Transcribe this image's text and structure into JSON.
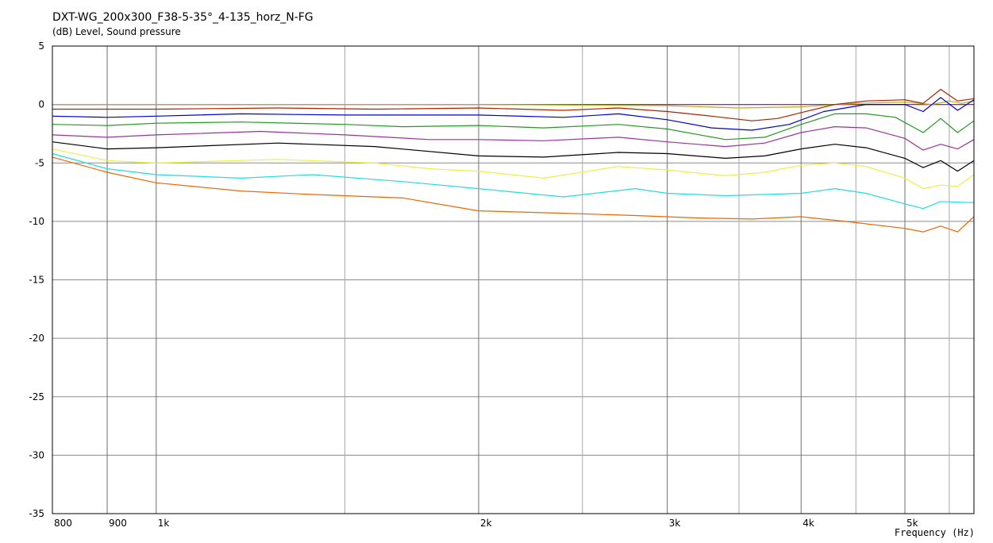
{
  "chart_data": {
    "type": "line",
    "title": "DXT-WG_200x300_F38-5-35°_4-135_horz_N-FG",
    "ylabel": "(dB)  Level, Sound pressure",
    "xlabel": "Frequency  (Hz)",
    "x_scale": "log",
    "xlim": [
      800,
      5800
    ],
    "ylim": [
      -35,
      5
    ],
    "grid": true,
    "x_tick_values": [
      800,
      900,
      1000,
      2000,
      3000,
      4000,
      5000
    ],
    "x_tick_labels": [
      "800",
      "900",
      "1k",
      "2k",
      "3k",
      "4k",
      "5k"
    ],
    "x_minor_gridlines": [
      1500,
      2500,
      3500,
      4500,
      5500
    ],
    "y_ticks": [
      5,
      0,
      -5,
      -10,
      -15,
      -20,
      -25,
      -30,
      -35
    ],
    "y_tick_labels": [
      "5",
      "0",
      "-5",
      "-10",
      "-15",
      "-20",
      "-25",
      "-30",
      "-35"
    ],
    "series": [
      {
        "color": "#cc00cc",
        "points": [
          [
            800,
            0.0
          ],
          [
            1000,
            0.0
          ],
          [
            2000,
            0.0
          ],
          [
            3000,
            0.0
          ],
          [
            4000,
            0.0
          ],
          [
            5000,
            0.0
          ],
          [
            5800,
            0.0
          ]
        ]
      },
      {
        "color": "#b5b500",
        "points": [
          [
            800,
            0.0
          ],
          [
            1000,
            0.0
          ],
          [
            2000,
            0.0
          ],
          [
            3000,
            -0.1
          ],
          [
            3500,
            -0.3
          ],
          [
            4000,
            -0.2
          ],
          [
            4500,
            0.1
          ],
          [
            5000,
            0.2
          ],
          [
            5300,
            0.0
          ],
          [
            5500,
            0.3
          ],
          [
            5650,
            0.1
          ],
          [
            5800,
            0.3
          ]
        ]
      },
      {
        "color": "#aa2200",
        "points": [
          [
            800,
            -0.4
          ],
          [
            900,
            -0.4
          ],
          [
            1000,
            -0.4
          ],
          [
            1300,
            -0.3
          ],
          [
            1600,
            -0.4
          ],
          [
            2000,
            -0.3
          ],
          [
            2400,
            -0.5
          ],
          [
            2700,
            -0.3
          ],
          [
            3000,
            -0.6
          ],
          [
            3300,
            -1.0
          ],
          [
            3600,
            -1.4
          ],
          [
            3800,
            -1.2
          ],
          [
            4000,
            -0.7
          ],
          [
            4300,
            0.0
          ],
          [
            4600,
            0.3
          ],
          [
            5000,
            0.4
          ],
          [
            5200,
            0.1
          ],
          [
            5400,
            1.3
          ],
          [
            5600,
            0.3
          ],
          [
            5800,
            0.5
          ]
        ]
      },
      {
        "color": "#0000cc",
        "points": [
          [
            800,
            -1.0
          ],
          [
            900,
            -1.1
          ],
          [
            1000,
            -1.0
          ],
          [
            1200,
            -0.8
          ],
          [
            1500,
            -0.9
          ],
          [
            2000,
            -0.9
          ],
          [
            2400,
            -1.1
          ],
          [
            2700,
            -0.8
          ],
          [
            3000,
            -1.3
          ],
          [
            3300,
            -2.0
          ],
          [
            3600,
            -2.2
          ],
          [
            3900,
            -1.7
          ],
          [
            4200,
            -0.6
          ],
          [
            4600,
            0.0
          ],
          [
            5000,
            0.0
          ],
          [
            5200,
            -0.6
          ],
          [
            5400,
            0.6
          ],
          [
            5600,
            -0.5
          ],
          [
            5800,
            0.4
          ]
        ]
      },
      {
        "color": "#229922",
        "points": [
          [
            800,
            -1.7
          ],
          [
            900,
            -1.8
          ],
          [
            1000,
            -1.6
          ],
          [
            1200,
            -1.5
          ],
          [
            1500,
            -1.7
          ],
          [
            1700,
            -1.9
          ],
          [
            2000,
            -1.8
          ],
          [
            2300,
            -2.0
          ],
          [
            2700,
            -1.7
          ],
          [
            3000,
            -2.1
          ],
          [
            3400,
            -3.0
          ],
          [
            3700,
            -2.8
          ],
          [
            4000,
            -1.7
          ],
          [
            4300,
            -0.8
          ],
          [
            4600,
            -0.8
          ],
          [
            4900,
            -1.1
          ],
          [
            5200,
            -2.4
          ],
          [
            5400,
            -1.2
          ],
          [
            5600,
            -2.4
          ],
          [
            5800,
            -1.4
          ]
        ]
      },
      {
        "color": "#993399",
        "points": [
          [
            800,
            -2.6
          ],
          [
            900,
            -2.8
          ],
          [
            1000,
            -2.6
          ],
          [
            1250,
            -2.3
          ],
          [
            1500,
            -2.6
          ],
          [
            1800,
            -3.0
          ],
          [
            2000,
            -3.0
          ],
          [
            2300,
            -3.1
          ],
          [
            2700,
            -2.8
          ],
          [
            3000,
            -3.2
          ],
          [
            3400,
            -3.6
          ],
          [
            3700,
            -3.3
          ],
          [
            4000,
            -2.4
          ],
          [
            4300,
            -1.9
          ],
          [
            4600,
            -2.0
          ],
          [
            5000,
            -2.9
          ],
          [
            5200,
            -3.9
          ],
          [
            5400,
            -3.4
          ],
          [
            5600,
            -3.8
          ],
          [
            5800,
            -3.0
          ]
        ]
      },
      {
        "color": "#000000",
        "points": [
          [
            800,
            -3.2
          ],
          [
            900,
            -3.8
          ],
          [
            1000,
            -3.7
          ],
          [
            1300,
            -3.3
          ],
          [
            1600,
            -3.6
          ],
          [
            2000,
            -4.4
          ],
          [
            2300,
            -4.5
          ],
          [
            2700,
            -4.1
          ],
          [
            3000,
            -4.2
          ],
          [
            3400,
            -4.6
          ],
          [
            3700,
            -4.4
          ],
          [
            4000,
            -3.8
          ],
          [
            4300,
            -3.4
          ],
          [
            4600,
            -3.7
          ],
          [
            5000,
            -4.6
          ],
          [
            5200,
            -5.4
          ],
          [
            5400,
            -4.8
          ],
          [
            5600,
            -5.7
          ],
          [
            5800,
            -4.8
          ]
        ]
      },
      {
        "color": "#eeee44",
        "points": [
          [
            800,
            -3.8
          ],
          [
            900,
            -4.8
          ],
          [
            1000,
            -5.0
          ],
          [
            1300,
            -4.7
          ],
          [
            1600,
            -5.0
          ],
          [
            1800,
            -5.5
          ],
          [
            2000,
            -5.7
          ],
          [
            2300,
            -6.3
          ],
          [
            2700,
            -5.3
          ],
          [
            3000,
            -5.6
          ],
          [
            3400,
            -6.1
          ],
          [
            3700,
            -5.8
          ],
          [
            4000,
            -5.2
          ],
          [
            4300,
            -5.0
          ],
          [
            4600,
            -5.3
          ],
          [
            5000,
            -6.3
          ],
          [
            5200,
            -7.2
          ],
          [
            5400,
            -6.9
          ],
          [
            5600,
            -7.0
          ],
          [
            5800,
            -6.0
          ]
        ]
      },
      {
        "color": "#22dddd",
        "points": [
          [
            800,
            -4.2
          ],
          [
            900,
            -5.5
          ],
          [
            1000,
            -6.0
          ],
          [
            1200,
            -6.3
          ],
          [
            1400,
            -6.0
          ],
          [
            1700,
            -6.6
          ],
          [
            2000,
            -7.2
          ],
          [
            2400,
            -7.9
          ],
          [
            2800,
            -7.2
          ],
          [
            3000,
            -7.6
          ],
          [
            3400,
            -7.8
          ],
          [
            4000,
            -7.6
          ],
          [
            4300,
            -7.2
          ],
          [
            4600,
            -7.6
          ],
          [
            5000,
            -8.5
          ],
          [
            5200,
            -8.9
          ],
          [
            5400,
            -8.3
          ],
          [
            5800,
            -8.4
          ]
        ]
      },
      {
        "color": "#ee6600",
        "points": [
          [
            800,
            -4.5
          ],
          [
            900,
            -5.8
          ],
          [
            1000,
            -6.7
          ],
          [
            1200,
            -7.4
          ],
          [
            1400,
            -7.7
          ],
          [
            1700,
            -8.0
          ],
          [
            2000,
            -9.1
          ],
          [
            2400,
            -9.3
          ],
          [
            2800,
            -9.5
          ],
          [
            3200,
            -9.7
          ],
          [
            3600,
            -9.8
          ],
          [
            4000,
            -9.6
          ],
          [
            4400,
            -10.0
          ],
          [
            5000,
            -10.6
          ],
          [
            5200,
            -10.9
          ],
          [
            5400,
            -10.4
          ],
          [
            5600,
            -10.9
          ],
          [
            5800,
            -9.6
          ]
        ]
      }
    ]
  }
}
